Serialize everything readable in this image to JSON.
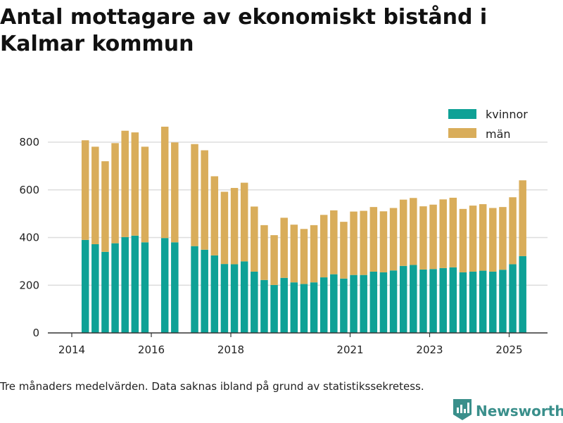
{
  "title": "Antal mottagare av ekonomiskt bistånd i Kalmar kommun",
  "caption": "Tre månaders medelvärden. Data saknas ibland på grund av statistikssekretess.",
  "brand": {
    "name": "Newsworthy",
    "icon": "bar-chart-logo-icon"
  },
  "colors": {
    "kvinnor": "#0ea196",
    "man": "#d9ad5a",
    "grid": "#dddddd",
    "axis": "#333333"
  },
  "chart_data": {
    "type": "bar",
    "stacked": true,
    "x_ticks": [
      "2014",
      "2016",
      "2018",
      "2021",
      "2023",
      "2025"
    ],
    "y_ticks": [
      "0",
      "200",
      "400",
      "600",
      "800"
    ],
    "ylim": [
      0,
      900
    ],
    "grid": true,
    "legend_position": "top-right",
    "categories": [
      "2014-Q2",
      "2014-Q3",
      "2014-Q4",
      "2015-Q1",
      "2015-Q2",
      "2015-Q3",
      "2015-Q4",
      "2016-Q2",
      "2016-Q3",
      "2017-Q1",
      "2017-Q2",
      "2017-Q3",
      "2017-Q4",
      "2018-Q1",
      "2018-Q2",
      "2018-Q3",
      "2018-Q4",
      "2019-Q1",
      "2019-Q2",
      "2019-Q3",
      "2019-Q4",
      "2020-Q1",
      "2020-Q2",
      "2020-Q3",
      "2020-Q4",
      "2021-Q1",
      "2021-Q2",
      "2021-Q3",
      "2021-Q4",
      "2022-Q1",
      "2022-Q2",
      "2022-Q3",
      "2022-Q4",
      "2023-Q1",
      "2023-Q2",
      "2023-Q3",
      "2023-Q4",
      "2024-Q1",
      "2024-Q2",
      "2024-Q3",
      "2024-Q4",
      "2025-Q1",
      "2025-Q2"
    ],
    "series": [
      {
        "name": "kvinnor",
        "values": [
          390,
          372,
          340,
          376,
          402,
          408,
          380,
          398,
          380,
          364,
          349,
          325,
          289,
          288,
          300,
          257,
          222,
          201,
          231,
          212,
          205,
          212,
          233,
          246,
          228,
          243,
          243,
          257,
          254,
          262,
          281,
          285,
          266,
          268,
          272,
          275,
          254,
          257,
          261,
          257,
          265,
          288,
          322
        ]
      },
      {
        "name": "män",
        "values": [
          418,
          409,
          380,
          420,
          446,
          433,
          401,
          467,
          419,
          428,
          417,
          332,
          303,
          320,
          330,
          273,
          230,
          209,
          252,
          242,
          231,
          240,
          262,
          268,
          238,
          266,
          269,
          271,
          256,
          262,
          278,
          281,
          265,
          270,
          288,
          292,
          266,
          277,
          279,
          267,
          263,
          281,
          318
        ]
      }
    ]
  }
}
